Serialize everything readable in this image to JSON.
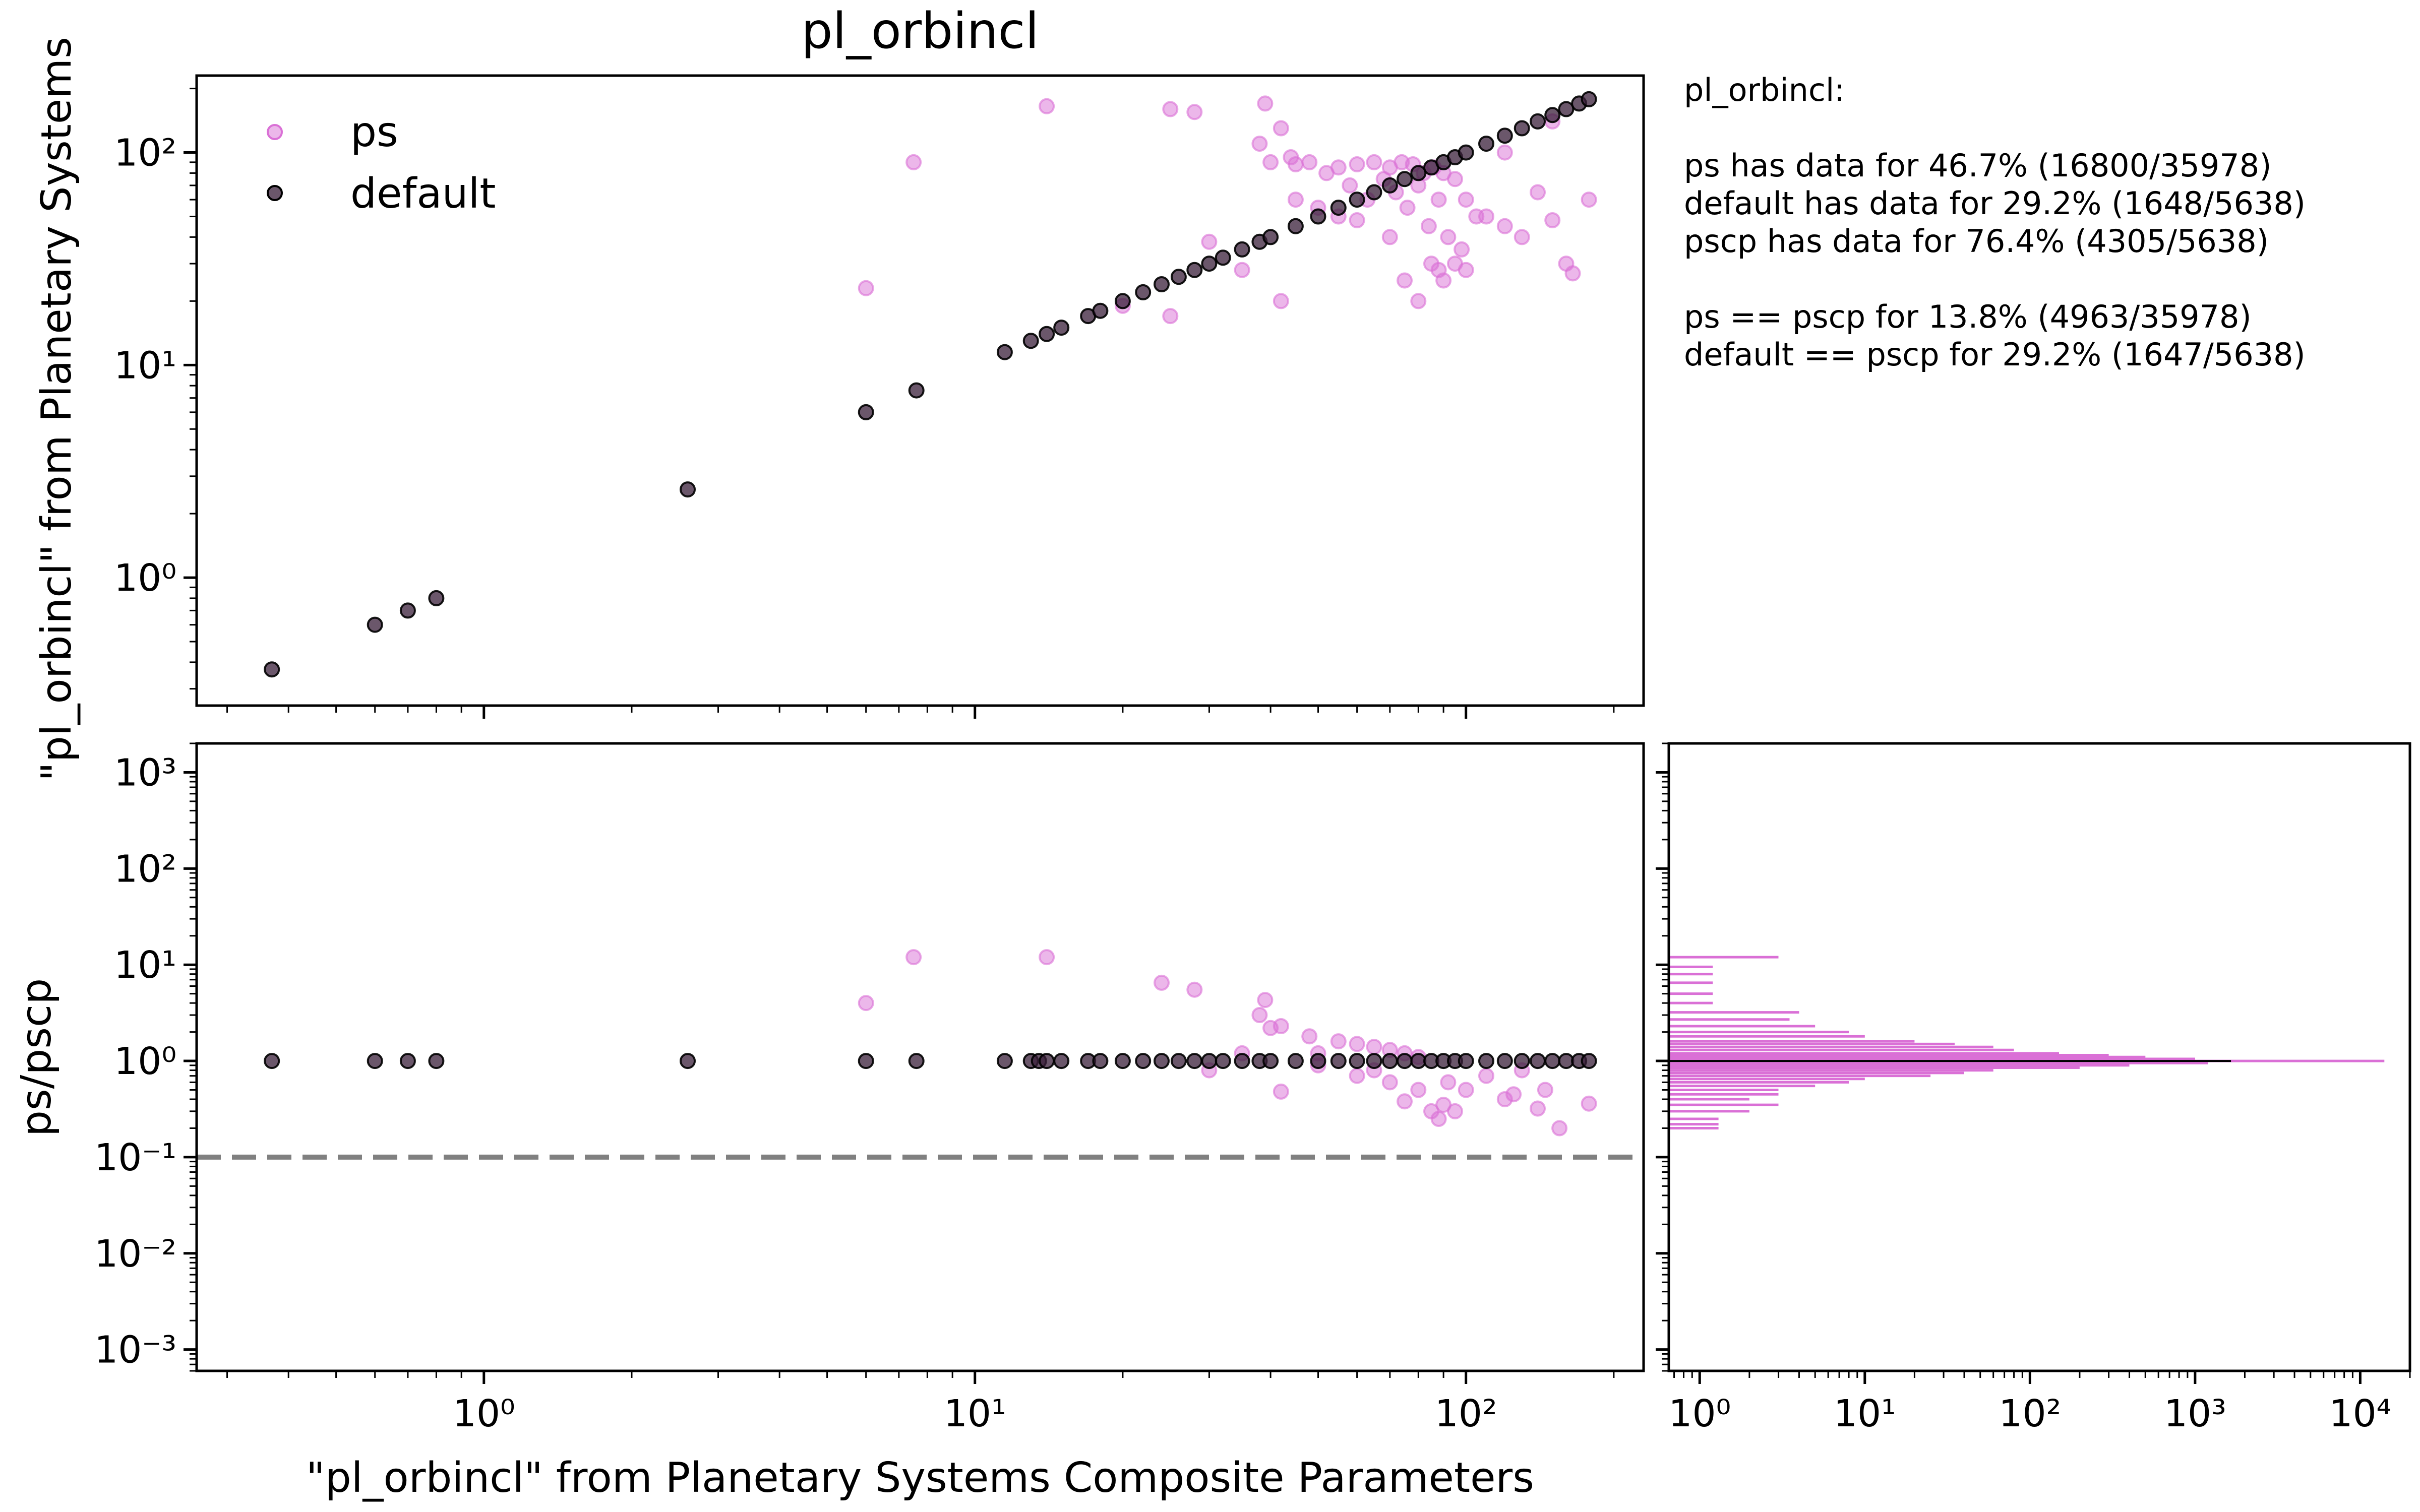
{
  "colors": {
    "ps": "#da70d6",
    "default": "#3a1f3a",
    "frame": "#000000",
    "reference": "#808080"
  },
  "chart_data": [
    {
      "panel": "top-scatter",
      "type": "scatter",
      "title": "pl_orbincl",
      "xlabel": "",
      "ylabel": "\"pl_orbincl\" from Planetary Systems",
      "xscale": "log",
      "yscale": "log",
      "xlim": [
        0.26,
        230
      ],
      "ylim": [
        0.25,
        230
      ],
      "xticks": [
        1,
        10,
        100
      ],
      "yticks": [
        1,
        10,
        100
      ],
      "grid": false,
      "legend": {
        "placement": "top-left",
        "entries": [
          "ps",
          "default"
        ]
      },
      "series": [
        {
          "name": "ps",
          "color": "#da70d6",
          "points": [
            [
              6,
              23
            ],
            [
              7.5,
              90
            ],
            [
              14,
              165
            ],
            [
              25,
              160
            ],
            [
              28,
              155
            ],
            [
              39,
              170
            ],
            [
              42,
              130
            ],
            [
              38,
              110
            ],
            [
              44,
              95
            ],
            [
              48,
              90
            ],
            [
              52,
              80
            ],
            [
              55,
              85
            ],
            [
              58,
              70
            ],
            [
              60,
              88
            ],
            [
              63,
              60
            ],
            [
              65,
              90
            ],
            [
              68,
              75
            ],
            [
              70,
              85
            ],
            [
              72,
              65
            ],
            [
              74,
              90
            ],
            [
              76,
              55
            ],
            [
              78,
              88
            ],
            [
              80,
              70
            ],
            [
              82,
              80
            ],
            [
              84,
              45
            ],
            [
              86,
              85
            ],
            [
              88,
              60
            ],
            [
              90,
              80
            ],
            [
              92,
              40
            ],
            [
              95,
              75
            ],
            [
              98,
              35
            ],
            [
              100,
              60
            ],
            [
              105,
              50
            ],
            [
              85,
              30
            ],
            [
              88,
              28
            ],
            [
              90,
              25
            ],
            [
              80,
              20
            ],
            [
              75,
              25
            ],
            [
              70,
              40
            ],
            [
              60,
              48
            ],
            [
              55,
              50
            ],
            [
              50,
              55
            ],
            [
              45,
              60
            ],
            [
              42,
              20
            ],
            [
              30,
              38
            ],
            [
              25,
              17
            ],
            [
              20,
              19
            ],
            [
              35,
              28
            ],
            [
              40,
              90
            ],
            [
              45,
              88
            ],
            [
              120,
              45
            ],
            [
              130,
              40
            ],
            [
              140,
              65
            ],
            [
              150,
              48
            ],
            [
              160,
              30
            ],
            [
              165,
              27
            ],
            [
              178,
              60
            ],
            [
              110,
              50
            ],
            [
              100,
              28
            ],
            [
              95,
              30
            ],
            [
              150,
              140
            ],
            [
              120,
              100
            ]
          ]
        },
        {
          "name": "default",
          "color": "#3a1f3a",
          "points": [
            [
              0.37,
              0.37
            ],
            [
              0.6,
              0.6
            ],
            [
              0.7,
              0.7
            ],
            [
              0.8,
              0.8
            ],
            [
              2.6,
              2.6
            ],
            [
              6,
              6
            ],
            [
              7.6,
              7.6
            ],
            [
              11.5,
              11.5
            ],
            [
              13,
              13
            ],
            [
              14,
              14
            ],
            [
              15,
              15
            ],
            [
              17,
              17
            ],
            [
              18,
              18
            ],
            [
              20,
              20
            ],
            [
              22,
              22
            ],
            [
              24,
              24
            ],
            [
              26,
              26
            ],
            [
              28,
              28
            ],
            [
              30,
              30
            ],
            [
              32,
              32
            ],
            [
              35,
              35
            ],
            [
              38,
              38
            ],
            [
              40,
              40
            ],
            [
              45,
              45
            ],
            [
              50,
              50
            ],
            [
              55,
              55
            ],
            [
              60,
              60
            ],
            [
              65,
              65
            ],
            [
              70,
              70
            ],
            [
              75,
              75
            ],
            [
              80,
              80
            ],
            [
              85,
              85
            ],
            [
              90,
              90
            ],
            [
              95,
              95
            ],
            [
              100,
              100
            ],
            [
              110,
              110
            ],
            [
              120,
              120
            ],
            [
              130,
              130
            ],
            [
              140,
              140
            ],
            [
              150,
              150
            ],
            [
              160,
              160
            ],
            [
              170,
              170
            ],
            [
              178,
              178
            ]
          ]
        }
      ]
    },
    {
      "panel": "bottom-ratio",
      "type": "scatter",
      "xlabel": "\"pl_orbincl\" from Planetary Systems Composite Parameters",
      "ylabel": "ps/pscp",
      "xscale": "log",
      "yscale": "log",
      "xlim": [
        0.26,
        230
      ],
      "ylim": [
        0.0006,
        2000
      ],
      "xticks": [
        1,
        10,
        100
      ],
      "yticks": [
        0.001,
        0.01,
        0.1,
        1,
        10,
        100,
        1000
      ],
      "reference_line": {
        "y": 0.1,
        "style": "dashed"
      },
      "series": [
        {
          "name": "ps",
          "color": "#da70d6",
          "points": [
            [
              6,
              4
            ],
            [
              7.5,
              12
            ],
            [
              14,
              12
            ],
            [
              24,
              6.5
            ],
            [
              28,
              5.5
            ],
            [
              38,
              3
            ],
            [
              39,
              4.3
            ],
            [
              40,
              2.2
            ],
            [
              42,
              2.3
            ],
            [
              48,
              1.8
            ],
            [
              50,
              1.2
            ],
            [
              55,
              1.6
            ],
            [
              60,
              1.5
            ],
            [
              65,
              1.4
            ],
            [
              70,
              1.3
            ],
            [
              75,
              1.2
            ],
            [
              80,
              1.1
            ],
            [
              42,
              0.48
            ],
            [
              60,
              0.7
            ],
            [
              65,
              0.8
            ],
            [
              70,
              0.6
            ],
            [
              75,
              0.38
            ],
            [
              80,
              0.5
            ],
            [
              85,
              0.3
            ],
            [
              88,
              0.25
            ],
            [
              90,
              0.35
            ],
            [
              92,
              0.6
            ],
            [
              95,
              0.3
            ],
            [
              100,
              0.5
            ],
            [
              110,
              0.7
            ],
            [
              120,
              0.4
            ],
            [
              125,
              0.45
            ],
            [
              140,
              0.32
            ],
            [
              145,
              0.5
            ],
            [
              155,
              0.2
            ],
            [
              178,
              0.36
            ],
            [
              30,
              0.8
            ],
            [
              35,
              1.2
            ],
            [
              50,
              0.9
            ],
            [
              130,
              0.8
            ]
          ]
        },
        {
          "name": "default",
          "color": "#3a1f3a",
          "points": [
            [
              0.37,
              1
            ],
            [
              0.6,
              1
            ],
            [
              0.7,
              1
            ],
            [
              0.8,
              1
            ],
            [
              2.6,
              1
            ],
            [
              6,
              1
            ],
            [
              7.6,
              1
            ],
            [
              11.5,
              1
            ],
            [
              13,
              1
            ],
            [
              13.5,
              1
            ],
            [
              14,
              1
            ],
            [
              15,
              1
            ],
            [
              17,
              1
            ],
            [
              18,
              1
            ],
            [
              20,
              1
            ],
            [
              22,
              1
            ],
            [
              24,
              1
            ],
            [
              26,
              1
            ],
            [
              28,
              1
            ],
            [
              30,
              1
            ],
            [
              32,
              1
            ],
            [
              35,
              1
            ],
            [
              38,
              1
            ],
            [
              40,
              1
            ],
            [
              45,
              1
            ],
            [
              50,
              1
            ],
            [
              55,
              1
            ],
            [
              60,
              1
            ],
            [
              65,
              1
            ],
            [
              70,
              1
            ],
            [
              75,
              1
            ],
            [
              80,
              1
            ],
            [
              85,
              1
            ],
            [
              90,
              1
            ],
            [
              95,
              1
            ],
            [
              100,
              1
            ],
            [
              110,
              1
            ],
            [
              120,
              1
            ],
            [
              130,
              1
            ],
            [
              140,
              1
            ],
            [
              150,
              1
            ],
            [
              160,
              1
            ],
            [
              170,
              1
            ],
            [
              178,
              1
            ]
          ]
        }
      ]
    },
    {
      "panel": "histogram",
      "type": "bar",
      "orientation": "horizontal",
      "xscale": "log",
      "yscale": "log",
      "xlim": [
        0.65,
        20000
      ],
      "ylim": [
        0.0006,
        2000
      ],
      "xticks": [
        1,
        10,
        100,
        1000,
        10000
      ],
      "series": [
        {
          "name": "ps",
          "color": "#da70d6",
          "bins": [
            [
              12,
              3
            ],
            [
              9.5,
              1.2
            ],
            [
              8,
              1.2
            ],
            [
              6.5,
              1.2
            ],
            [
              5,
              1.2
            ],
            [
              4,
              1.2
            ],
            [
              3.2,
              4
            ],
            [
              2.7,
              3.5
            ],
            [
              2.3,
              5
            ],
            [
              2,
              8
            ],
            [
              1.8,
              10
            ],
            [
              1.6,
              20
            ],
            [
              1.5,
              35
            ],
            [
              1.4,
              60
            ],
            [
              1.3,
              80
            ],
            [
              1.2,
              150
            ],
            [
              1.15,
              300
            ],
            [
              1.1,
              500
            ],
            [
              1.05,
              1000
            ],
            [
              1.0,
              14000
            ],
            [
              0.95,
              1200
            ],
            [
              0.9,
              400
            ],
            [
              0.85,
              200
            ],
            [
              0.8,
              60
            ],
            [
              0.75,
              40
            ],
            [
              0.7,
              25
            ],
            [
              0.65,
              10
            ],
            [
              0.6,
              8
            ],
            [
              0.55,
              5
            ],
            [
              0.5,
              3
            ],
            [
              0.45,
              3
            ],
            [
              0.4,
              2
            ],
            [
              0.35,
              3
            ],
            [
              0.3,
              2
            ],
            [
              0.25,
              1.3
            ],
            [
              0.22,
              1.3
            ],
            [
              0.2,
              1.3
            ]
          ]
        },
        {
          "name": "default",
          "color": "#000000",
          "bins": [
            [
              1.0,
              1650
            ]
          ]
        }
      ]
    }
  ],
  "stats": {
    "lines": [
      "pl_orbincl:",
      "",
      "ps has data for 46.7% (16800/35978)",
      "default has data for 29.2% (1648/5638)",
      "pscp has data for 76.4% (4305/5638)",
      "",
      "ps == pscp  for 13.8% (4963/35978)",
      "default == pscp  for 29.2% (1647/5638)"
    ]
  }
}
